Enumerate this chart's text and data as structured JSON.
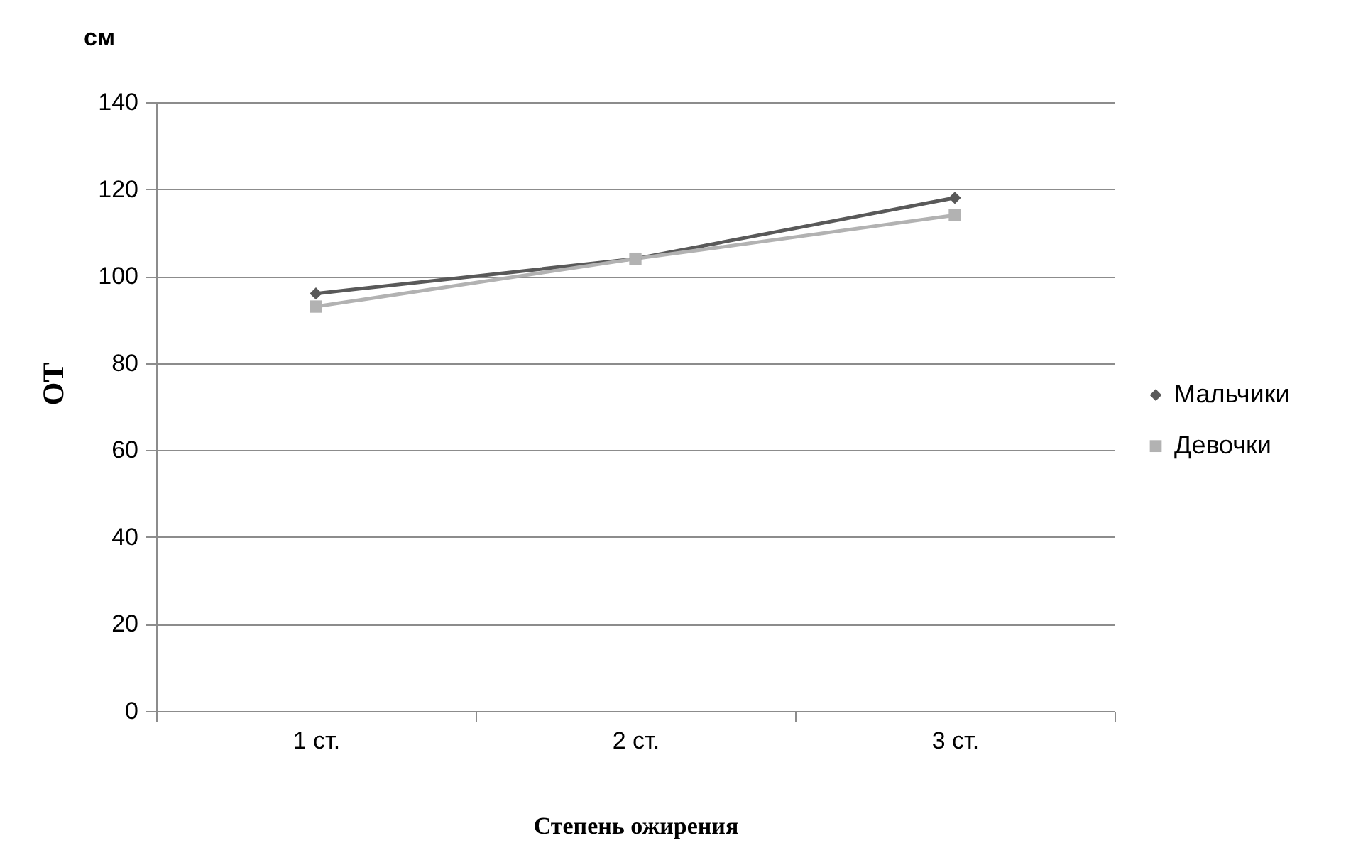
{
  "chart_data": {
    "type": "line",
    "xlabel": "Степень ожирения",
    "ylabel": "ОТ",
    "annotations": [
      "см"
    ],
    "categories": [
      "1 ст.",
      "2 ст.",
      "3 ст."
    ],
    "series": [
      {
        "name": "Мальчики",
        "color": "#595959",
        "marker": "diamond",
        "values": [
          96,
          104,
          118
        ]
      },
      {
        "name": "Девочки",
        "color": "#b2b2b2",
        "marker": "square",
        "values": [
          93,
          104,
          114
        ]
      }
    ],
    "ylim": [
      0,
      140
    ],
    "yticks": [
      0,
      20,
      40,
      60,
      80,
      100,
      120,
      140
    ],
    "grid": "y",
    "legend": "right"
  }
}
